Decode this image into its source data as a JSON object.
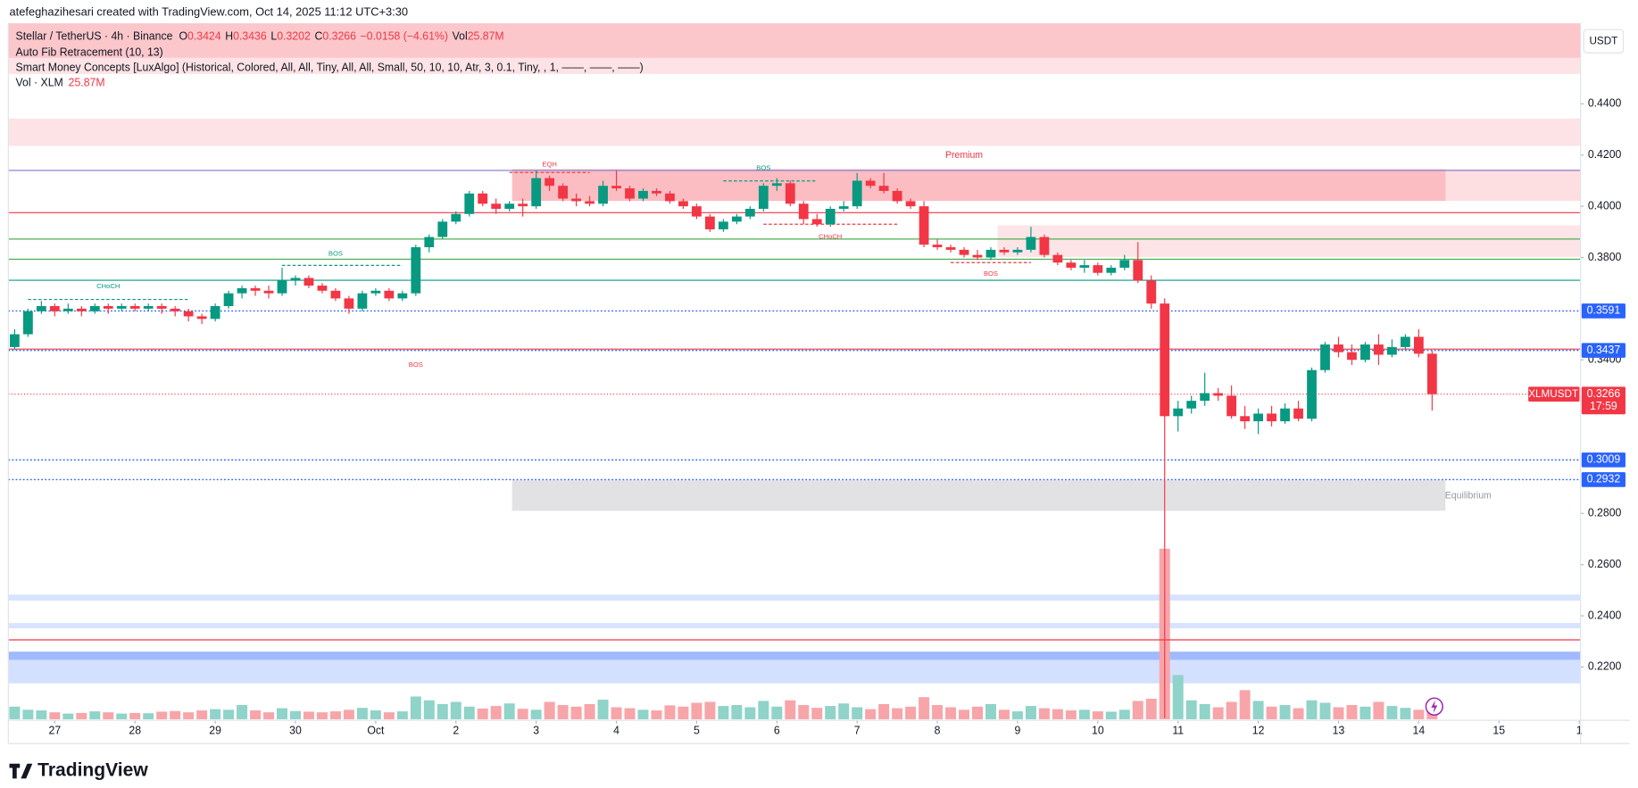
{
  "header": "atefeghazihesari created with TradingView.com, Oct 14, 2025 11:12 UTC+3:30",
  "brand": "TradingView",
  "chart_data": {
    "type": "candlestick",
    "legend": {
      "symbol": "Stellar / TetherUS · 4h · Binance",
      "fields": [
        {
          "key": "O",
          "value": "0.3424"
        },
        {
          "key": "H",
          "value": "0.3436"
        },
        {
          "key": "L",
          "value": "0.3202"
        },
        {
          "key": "C",
          "value": "0.3266"
        }
      ],
      "change": "−0.0158 (−4.61%)",
      "vol_key": "Vol",
      "vol_value": "25.87M"
    },
    "indicators": [
      "Auto Fib Retracement (10, 13)",
      "Smart Money Concepts [LuxAlgo] (Historical, Colored, All, All, Tiny, All, All, Small, 50, 10, 10, Atr, 3, 0.1, Tiny, , 1, ——, ——, ——)"
    ],
    "volume_legend": {
      "name": "Vol · XLM",
      "value": "25.87M"
    },
    "currency": "USDT",
    "up_color": "#089981",
    "down_color": "#f23645",
    "volume_up_color": "#8fd3c9",
    "volume_down_color": "#f7a5a9",
    "xlim": [
      -0.47,
      117.1
    ],
    "xticks": [
      {
        "value": 3,
        "label": "27"
      },
      {
        "value": 9,
        "label": "28"
      },
      {
        "value": 15,
        "label": "29"
      },
      {
        "value": 21,
        "label": "30"
      },
      {
        "value": 27,
        "label": "Oct"
      },
      {
        "value": 33,
        "label": "2"
      },
      {
        "value": 39,
        "label": "3"
      },
      {
        "value": 45,
        "label": "4"
      },
      {
        "value": 51,
        "label": "5"
      },
      {
        "value": 57,
        "label": "6"
      },
      {
        "value": 63,
        "label": "7"
      },
      {
        "value": 69,
        "label": "8"
      },
      {
        "value": 75,
        "label": "9"
      },
      {
        "value": 81,
        "label": "10"
      },
      {
        "value": 87,
        "label": "11"
      },
      {
        "value": 93,
        "label": "12"
      },
      {
        "value": 99,
        "label": "13"
      },
      {
        "value": 105,
        "label": "14"
      },
      {
        "value": 111,
        "label": "15"
      },
      {
        "value": 117,
        "label": "1"
      }
    ],
    "ylim": [
      0.2,
      0.4715
    ],
    "yticks": [
      {
        "value": 0.44,
        "label": "0.4400"
      },
      {
        "value": 0.42,
        "label": "0.4200"
      },
      {
        "value": 0.4,
        "label": "0.4000"
      },
      {
        "value": 0.38,
        "label": "0.3800"
      },
      {
        "value": 0.34,
        "label": "0.3400"
      },
      {
        "value": 0.28,
        "label": "0.2800"
      },
      {
        "value": 0.26,
        "label": "0.2600"
      },
      {
        "value": 0.24,
        "label": "0.2400"
      },
      {
        "value": 0.22,
        "label": "0.2200"
      }
    ],
    "grid": false,
    "volume_ylim": [
      0,
      2200
    ],
    "ohlc": [
      [
        0.345,
        0.352,
        0.344,
        0.35
      ],
      [
        0.35,
        0.36,
        0.349,
        0.359
      ],
      [
        0.359,
        0.363,
        0.358,
        0.361
      ],
      [
        0.361,
        0.362,
        0.357,
        0.359
      ],
      [
        0.359,
        0.362,
        0.358,
        0.36
      ],
      [
        0.36,
        0.361,
        0.357,
        0.359
      ],
      [
        0.359,
        0.362,
        0.358,
        0.361
      ],
      [
        0.361,
        0.362,
        0.358,
        0.36
      ],
      [
        0.36,
        0.362,
        0.359,
        0.361
      ],
      [
        0.361,
        0.362,
        0.359,
        0.36
      ],
      [
        0.36,
        0.362,
        0.359,
        0.361
      ],
      [
        0.361,
        0.362,
        0.358,
        0.36
      ],
      [
        0.36,
        0.361,
        0.357,
        0.359
      ],
      [
        0.359,
        0.36,
        0.355,
        0.357
      ],
      [
        0.357,
        0.358,
        0.354,
        0.356
      ],
      [
        0.356,
        0.362,
        0.355,
        0.361
      ],
      [
        0.361,
        0.367,
        0.36,
        0.366
      ],
      [
        0.366,
        0.369,
        0.364,
        0.368
      ],
      [
        0.368,
        0.369,
        0.365,
        0.367
      ],
      [
        0.367,
        0.369,
        0.364,
        0.366
      ],
      [
        0.366,
        0.376,
        0.365,
        0.371
      ],
      [
        0.371,
        0.373,
        0.369,
        0.372
      ],
      [
        0.372,
        0.373,
        0.368,
        0.369
      ],
      [
        0.369,
        0.37,
        0.366,
        0.367
      ],
      [
        0.367,
        0.368,
        0.363,
        0.364
      ],
      [
        0.364,
        0.365,
        0.358,
        0.36
      ],
      [
        0.36,
        0.367,
        0.359,
        0.366
      ],
      [
        0.366,
        0.368,
        0.365,
        0.367
      ],
      [
        0.367,
        0.368,
        0.363,
        0.364
      ],
      [
        0.364,
        0.367,
        0.363,
        0.366
      ],
      [
        0.366,
        0.385,
        0.365,
        0.384
      ],
      [
        0.384,
        0.389,
        0.382,
        0.388
      ],
      [
        0.388,
        0.395,
        0.387,
        0.394
      ],
      [
        0.394,
        0.398,
        0.393,
        0.397
      ],
      [
        0.397,
        0.406,
        0.396,
        0.405
      ],
      [
        0.405,
        0.406,
        0.4,
        0.401
      ],
      [
        0.401,
        0.403,
        0.397,
        0.399
      ],
      [
        0.399,
        0.402,
        0.398,
        0.401
      ],
      [
        0.401,
        0.403,
        0.396,
        0.4
      ],
      [
        0.4,
        0.414,
        0.399,
        0.411
      ],
      [
        0.411,
        0.412,
        0.406,
        0.408
      ],
      [
        0.408,
        0.409,
        0.402,
        0.403
      ],
      [
        0.403,
        0.405,
        0.4,
        0.402
      ],
      [
        0.402,
        0.404,
        0.4,
        0.401
      ],
      [
        0.401,
        0.41,
        0.4,
        0.408
      ],
      [
        0.408,
        0.414,
        0.406,
        0.407
      ],
      [
        0.407,
        0.408,
        0.402,
        0.403
      ],
      [
        0.403,
        0.407,
        0.402,
        0.406
      ],
      [
        0.406,
        0.407,
        0.404,
        0.405
      ],
      [
        0.405,
        0.406,
        0.401,
        0.402
      ],
      [
        0.402,
        0.403,
        0.399,
        0.4
      ],
      [
        0.4,
        0.401,
        0.395,
        0.396
      ],
      [
        0.396,
        0.397,
        0.39,
        0.391
      ],
      [
        0.391,
        0.395,
        0.39,
        0.394
      ],
      [
        0.394,
        0.397,
        0.393,
        0.396
      ],
      [
        0.396,
        0.4,
        0.395,
        0.399
      ],
      [
        0.399,
        0.409,
        0.398,
        0.408
      ],
      [
        0.408,
        0.411,
        0.406,
        0.409
      ],
      [
        0.409,
        0.41,
        0.4,
        0.401
      ],
      [
        0.401,
        0.402,
        0.393,
        0.395
      ],
      [
        0.395,
        0.397,
        0.392,
        0.393
      ],
      [
        0.393,
        0.4,
        0.392,
        0.399
      ],
      [
        0.399,
        0.402,
        0.398,
        0.4
      ],
      [
        0.4,
        0.413,
        0.399,
        0.41
      ],
      [
        0.41,
        0.411,
        0.407,
        0.408
      ],
      [
        0.408,
        0.413,
        0.405,
        0.406
      ],
      [
        0.406,
        0.407,
        0.401,
        0.402
      ],
      [
        0.402,
        0.403,
        0.399,
        0.4
      ],
      [
        0.4,
        0.402,
        0.384,
        0.385
      ],
      [
        0.385,
        0.387,
        0.383,
        0.384
      ],
      [
        0.384,
        0.385,
        0.382,
        0.383
      ],
      [
        0.383,
        0.384,
        0.38,
        0.381
      ],
      [
        0.381,
        0.383,
        0.379,
        0.38
      ],
      [
        0.38,
        0.384,
        0.379,
        0.383
      ],
      [
        0.383,
        0.384,
        0.381,
        0.382
      ],
      [
        0.382,
        0.384,
        0.381,
        0.383
      ],
      [
        0.383,
        0.392,
        0.382,
        0.388
      ],
      [
        0.388,
        0.389,
        0.38,
        0.381
      ],
      [
        0.381,
        0.382,
        0.377,
        0.378
      ],
      [
        0.378,
        0.379,
        0.375,
        0.376
      ],
      [
        0.376,
        0.379,
        0.374,
        0.377
      ],
      [
        0.377,
        0.378,
        0.373,
        0.374
      ],
      [
        0.374,
        0.377,
        0.373,
        0.376
      ],
      [
        0.376,
        0.381,
        0.375,
        0.379
      ],
      [
        0.379,
        0.386,
        0.37,
        0.371
      ],
      [
        0.371,
        0.373,
        0.36,
        0.362
      ],
      [
        0.362,
        0.364,
        0.2,
        0.318
      ],
      [
        0.318,
        0.324,
        0.312,
        0.321
      ],
      [
        0.321,
        0.326,
        0.319,
        0.324
      ],
      [
        0.324,
        0.335,
        0.322,
        0.327
      ],
      [
        0.327,
        0.329,
        0.324,
        0.326
      ],
      [
        0.326,
        0.33,
        0.317,
        0.318
      ],
      [
        0.318,
        0.322,
        0.313,
        0.316
      ],
      [
        0.316,
        0.321,
        0.311,
        0.319
      ],
      [
        0.319,
        0.322,
        0.314,
        0.316
      ],
      [
        0.316,
        0.323,
        0.315,
        0.321
      ],
      [
        0.321,
        0.324,
        0.316,
        0.317
      ],
      [
        0.317,
        0.337,
        0.316,
        0.336
      ],
      [
        0.336,
        0.347,
        0.335,
        0.346
      ],
      [
        0.346,
        0.349,
        0.341,
        0.343
      ],
      [
        0.343,
        0.346,
        0.338,
        0.34
      ],
      [
        0.34,
        0.347,
        0.339,
        0.346
      ],
      [
        0.346,
        0.35,
        0.338,
        0.342
      ],
      [
        0.342,
        0.348,
        0.341,
        0.345
      ],
      [
        0.345,
        0.35,
        0.344,
        0.349
      ],
      [
        0.349,
        0.352,
        0.341,
        0.3424
      ],
      [
        0.3424,
        0.3436,
        0.3202,
        0.3266
      ]
    ],
    "volume": [
      40,
      30,
      28,
      22,
      18,
      20,
      25,
      22,
      18,
      20,
      19,
      24,
      26,
      22,
      28,
      32,
      30,
      45,
      28,
      22,
      35,
      26,
      24,
      22,
      25,
      30,
      36,
      28,
      22,
      25,
      72,
      60,
      48,
      55,
      40,
      34,
      42,
      50,
      33,
      30,
      55,
      45,
      40,
      48,
      62,
      38,
      35,
      30,
      28,
      44,
      40,
      52,
      55,
      42,
      45,
      38,
      58,
      40,
      60,
      45,
      36,
      42,
      50,
      38,
      32,
      48,
      35,
      40,
      70,
      45,
      38,
      30,
      40,
      48,
      30,
      25,
      42,
      35,
      32,
      28,
      30,
      25,
      24,
      30,
      58,
      65,
      540,
      140,
      60,
      48,
      38,
      55,
      92,
      58,
      40,
      45,
      35,
      60,
      52,
      38,
      45,
      40,
      55,
      42,
      36,
      30,
      25.87
    ],
    "zones": [
      {
        "top": 0.4715,
        "bottom": 0.458,
        "from": -0.47,
        "to": 117.1,
        "color": "rgba(242,54,69,0.28)"
      },
      {
        "top": 0.458,
        "bottom": 0.4517,
        "from": -0.47,
        "to": 117.1,
        "color": "rgba(242,54,69,0.14)"
      },
      {
        "top": 0.4343,
        "bottom": 0.4236,
        "from": -0.47,
        "to": 117.1,
        "color": "rgba(242,54,69,0.14)"
      },
      {
        "top": 0.4145,
        "bottom": 0.4021,
        "from": 37.2,
        "to": 107,
        "color": "rgba(242,54,69,0.33)"
      },
      {
        "top": 0.4145,
        "bottom": 0.4021,
        "from": 107,
        "to": 117.1,
        "color": "rgba(242,54,69,0.16)"
      },
      {
        "top": 0.3926,
        "bottom": 0.3802,
        "from": 73.5,
        "to": 117.1,
        "color": "rgba(242,54,69,0.13)"
      },
      {
        "top": 0.293,
        "bottom": 0.281,
        "from": 37.2,
        "to": 107,
        "color": "rgba(160,160,165,0.3)"
      },
      {
        "top": 0.2483,
        "bottom": 0.2459,
        "from": -0.47,
        "to": 117.1,
        "color": "rgba(41,98,255,0.18)"
      },
      {
        "top": 0.2372,
        "bottom": 0.2351,
        "from": -0.47,
        "to": 117.1,
        "color": "rgba(41,98,255,0.18)"
      },
      {
        "top": 0.226,
        "bottom": 0.2136,
        "from": -0.47,
        "to": 117.1,
        "color": "rgba(41,98,255,0.2)"
      },
      {
        "top": 0.226,
        "bottom": 0.2228,
        "from": -0.47,
        "to": 117.1,
        "color": "rgba(41,98,255,0.3)"
      }
    ],
    "levels": [
      {
        "price": 0.414,
        "color": "#8c82d6"
      },
      {
        "price": 0.3975,
        "color": "#f23645"
      },
      {
        "price": 0.3872,
        "color": "#4caf50"
      },
      {
        "price": 0.3793,
        "color": "#4caf50"
      },
      {
        "price": 0.3711,
        "color": "#089981"
      },
      {
        "price": 0.3442,
        "color": "#f23645"
      },
      {
        "price": 0.2306,
        "color": "#f23645"
      }
    ],
    "structure_lines": [
      {
        "from": 1,
        "to": 13,
        "price": 0.3636,
        "color": "#089981"
      },
      {
        "from": 20,
        "to": 29,
        "price": 0.3769,
        "color": "#089981"
      },
      {
        "from": 37,
        "to": 43,
        "price": 0.4132,
        "color": "#f23645"
      },
      {
        "from": 53,
        "to": 60,
        "price": 0.4099,
        "color": "#089981"
      },
      {
        "from": 56,
        "to": 66,
        "price": 0.393,
        "color": "#f23645"
      },
      {
        "from": 70,
        "to": 76,
        "price": 0.378,
        "color": "#f23645"
      }
    ],
    "annotations": [
      {
        "text": "CHoCH",
        "x": 7,
        "price": 0.3686,
        "color": "#089981"
      },
      {
        "text": "BOS",
        "x": 24,
        "price": 0.3814,
        "color": "#089981"
      },
      {
        "text": "BOS",
        "x": 30,
        "price": 0.338,
        "color": "#f23645"
      },
      {
        "text": "EQH",
        "x": 40,
        "price": 0.4162,
        "color": "#f23645"
      },
      {
        "text": "BOS",
        "x": 56,
        "price": 0.4148,
        "color": "#089981"
      },
      {
        "text": "CHoCH",
        "x": 61,
        "price": 0.388,
        "color": "#f23645"
      },
      {
        "text": "Premium",
        "x": 71,
        "price": 0.4198,
        "color": "#f23645"
      },
      {
        "text": "BOS",
        "x": 73,
        "price": 0.3736,
        "color": "#f23645"
      },
      {
        "text": "Equilibrium",
        "x": 108.7,
        "price": 0.2868,
        "color": "#9598a1"
      }
    ],
    "price_labels": [
      {
        "price": 0.3591,
        "color": "#2962ff"
      },
      {
        "price": 0.3437,
        "color": "#2962ff"
      },
      {
        "price": 0.3009,
        "color": "#2962ff"
      },
      {
        "price": 0.2932,
        "color": "#2962ff"
      }
    ],
    "last_price": {
      "name": "XLMUSDT",
      "price": 0.3266,
      "countdown": "17:59",
      "color": "#f23645"
    }
  }
}
